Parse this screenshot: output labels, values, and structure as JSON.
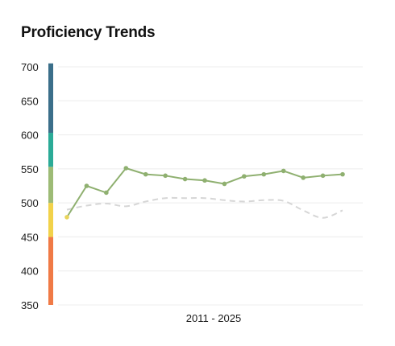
{
  "title": "Proficiency Trends",
  "chart_data": {
    "type": "line",
    "title": "Proficiency Trends",
    "xlabel": "2011 - 2025",
    "ylabel": "",
    "ylim": [
      350,
      700
    ],
    "yticks": [
      350,
      400,
      450,
      500,
      550,
      600,
      650,
      700
    ],
    "grid": true,
    "legend": "none",
    "band_colors": [
      {
        "from": 350,
        "to": 450,
        "color": "#f07a46"
      },
      {
        "from": 450,
        "to": 500,
        "color": "#f2d24a"
      },
      {
        "from": 500,
        "to": 553,
        "color": "#9dbb76"
      },
      {
        "from": 553,
        "to": 603,
        "color": "#2bab97"
      },
      {
        "from": 603,
        "to": 705,
        "color": "#3b6f8a"
      }
    ],
    "series": [
      {
        "style": "solid",
        "color": "#8fb070",
        "first_point_color": "#e9d45a",
        "markers": true,
        "values": [
          479,
          525,
          515,
          551,
          542,
          540,
          535,
          533,
          528,
          539,
          542,
          547,
          537,
          540,
          542
        ]
      },
      {
        "style": "dashed",
        "color": "#d6d6d6",
        "markers": false,
        "values": [
          490,
          496,
          499,
          495,
          502,
          507,
          507,
          507,
          504,
          502,
          504,
          503,
          489,
          478,
          489
        ]
      }
    ]
  }
}
